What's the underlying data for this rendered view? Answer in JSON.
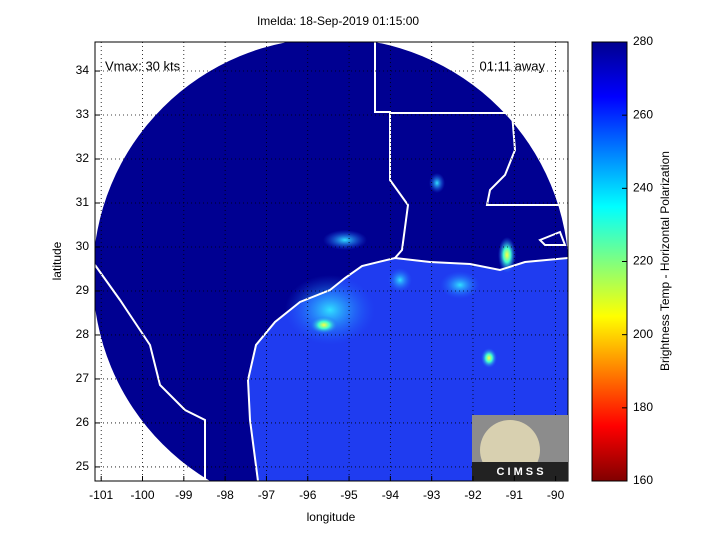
{
  "chart_data": {
    "type": "map",
    "title": "Imelda: 18-Sep-2019 01:15:00",
    "annotations": [
      "Vmax: 30 kts",
      "01:11 away"
    ],
    "xlabel": "longitude",
    "ylabel": "latitude",
    "xlim": [
      -101.15,
      -89.7
    ],
    "ylim": [
      24.68,
      34.66
    ],
    "xticks": [
      -101,
      -100,
      -99,
      -98,
      -97,
      -96,
      -95,
      -94,
      -93,
      -92,
      -91,
      -90
    ],
    "yticks": [
      25,
      26,
      27,
      28,
      29,
      30,
      31,
      32,
      33,
      34
    ],
    "grid": true,
    "colorbar": {
      "label": "Brightness Temp - Horizontal Polarization",
      "clim": [
        160,
        280
      ],
      "ticks": [
        160,
        180,
        200,
        220,
        240,
        260,
        280
      ]
    },
    "logo": "C I M S S"
  }
}
